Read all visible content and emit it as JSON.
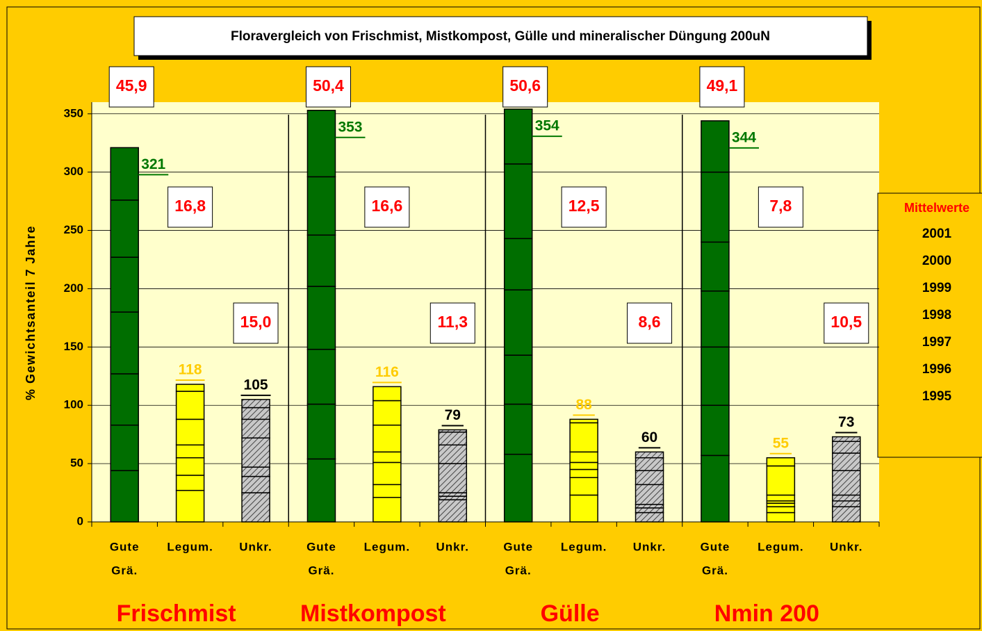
{
  "chart_data": {
    "type": "stacked_bar",
    "title": "Floravergleich von Frischmist, Mistkompost, Gülle und mineralischer Düngung 200uN",
    "y_label": "% Gewichtsanteil 7 Jahre",
    "groups": [
      "Frischmist",
      "Mistkompost",
      "Gülle",
      "Nmin 200"
    ],
    "categories": [
      [
        "Gute",
        "Grä."
      ],
      [
        "Legum."
      ],
      [
        "Unkr."
      ],
      [
        "Gute",
        "Grä."
      ],
      [
        "Legum."
      ],
      [
        "Unkr."
      ],
      [
        "Gute",
        "Grä."
      ],
      [
        "Legum."
      ],
      [
        "Unkr."
      ],
      [
        "Gute",
        "Grä."
      ],
      [
        "Legum."
      ],
      [
        "Unkr."
      ]
    ],
    "bar_colors": [
      "#006e00",
      "#ffff00",
      "#a6a6a6",
      "#006e00",
      "#ffff00",
      "#a6a6a6",
      "#006e00",
      "#ffff00",
      "#a6a6a6",
      "#006e00",
      "#ffff00",
      "#a6a6a6"
    ],
    "hatched": [
      false,
      false,
      true,
      false,
      false,
      true,
      false,
      false,
      true,
      false,
      false,
      true
    ],
    "total_colors": [
      "#007700",
      "#ffcc00",
      "#000000",
      "#007700",
      "#ffcc00",
      "#000000",
      "#007700",
      "#ffcc00",
      "#000000",
      "#007700",
      "#ffcc00",
      "#000000"
    ],
    "legend_title": "Mittelwerte",
    "series": [
      {
        "name": "1995",
        "values": [
          44,
          27,
          25,
          54,
          21,
          19,
          58,
          23,
          8,
          57,
          8,
          13
        ]
      },
      {
        "name": "1996",
        "values": [
          39,
          13,
          14,
          47,
          11,
          3,
          43,
          15,
          4,
          43,
          5,
          5
        ]
      },
      {
        "name": "1997",
        "values": [
          44,
          15,
          8,
          47,
          19,
          3,
          42,
          7,
          3,
          50,
          3,
          5
        ]
      },
      {
        "name": "1998",
        "values": [
          53,
          11,
          25,
          54,
          9,
          25,
          56,
          6,
          17,
          48,
          2,
          21
        ]
      },
      {
        "name": "1999",
        "values": [
          47,
          22,
          16,
          44,
          23,
          16,
          44,
          9,
          12,
          42,
          5,
          15
        ]
      },
      {
        "name": "2000",
        "values": [
          49,
          24,
          10,
          50,
          21,
          11,
          64,
          25,
          11,
          60,
          25,
          10
        ]
      },
      {
        "name": "2001",
        "values": [
          45,
          6,
          7,
          57,
          12,
          2,
          47,
          3,
          5,
          44,
          7,
          4
        ]
      }
    ],
    "totals": [
      321,
      118,
      105,
      353,
      116,
      79,
      354,
      88,
      60,
      344,
      55,
      73
    ],
    "boxes": {
      "values": [
        45.9,
        16.8,
        15.0,
        50.4,
        16.6,
        11.3,
        50.6,
        12.5,
        8.6,
        49.1,
        7.8,
        10.5
      ],
      "value_labels": [
        "45,9",
        "16,8",
        "15,0",
        "50,4",
        "16,6",
        "11,3",
        "50,6",
        "12,5",
        "8,6",
        "49,1",
        "7,8",
        "10,5"
      ]
    },
    "ylim": [
      0,
      360
    ],
    "yticks": [
      0,
      50,
      100,
      150,
      200,
      250,
      300,
      350
    ],
    "grid": true
  }
}
